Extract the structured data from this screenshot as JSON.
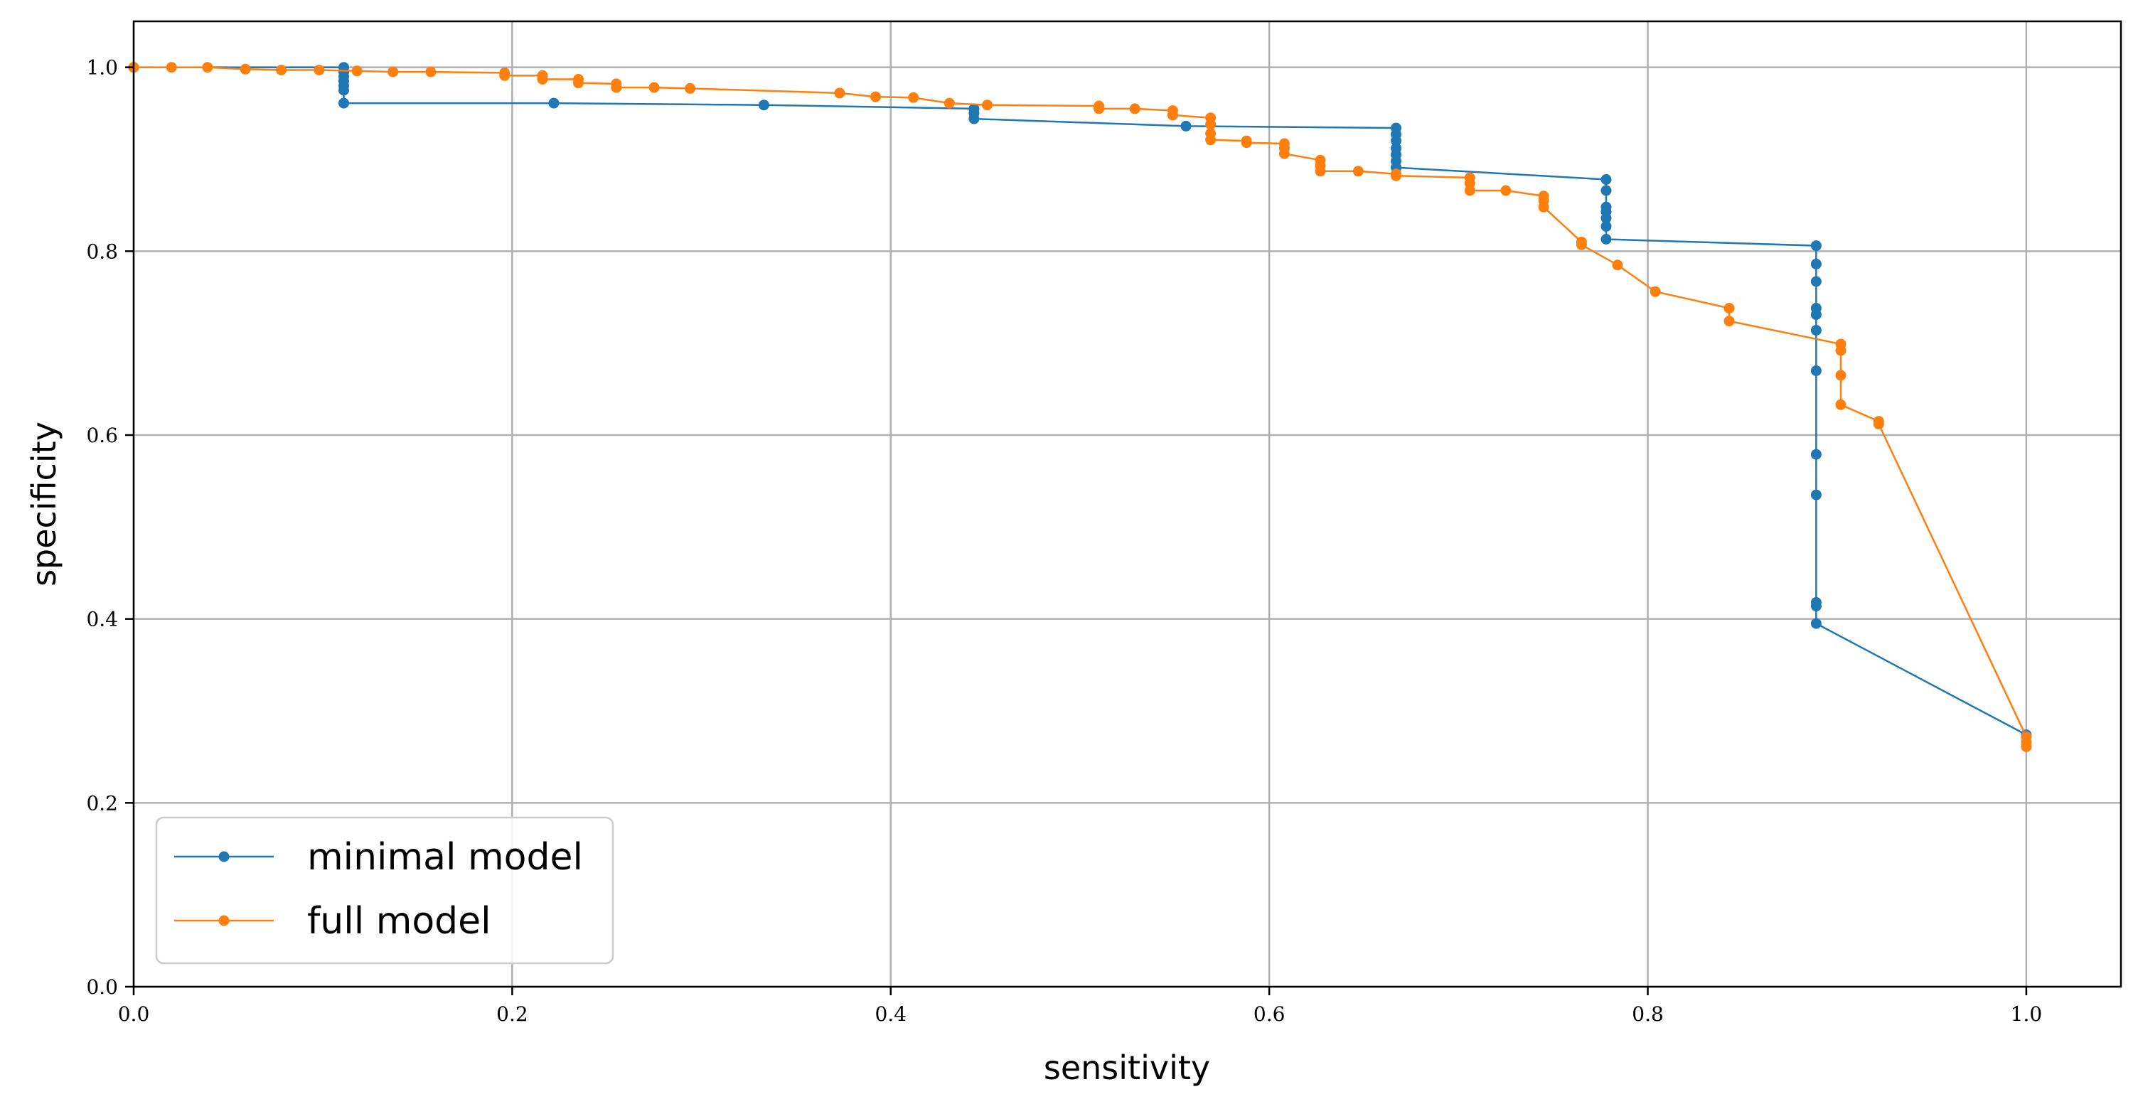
{
  "chart_data": {
    "type": "line",
    "title": "",
    "xlabel": "sensitivity",
    "ylabel": "specificity",
    "xlim": [
      0.0,
      1.05
    ],
    "ylim": [
      0.0,
      1.05
    ],
    "x_ticks": [
      0.0,
      0.2,
      0.4,
      0.6,
      0.8,
      1.0
    ],
    "y_ticks": [
      0.0,
      0.2,
      0.4,
      0.6,
      0.8,
      1.0
    ],
    "x_tick_labels": [
      "0.0",
      "0.2",
      "0.4",
      "0.6",
      "0.8",
      "1.0"
    ],
    "y_tick_labels": [
      "0.0",
      "0.2",
      "0.4",
      "0.6",
      "0.8",
      "1.0"
    ],
    "grid": true,
    "legend_position": "lower-left",
    "series": [
      {
        "name": "minimal model",
        "color": "#1f77b4",
        "points": [
          [
            0.0,
            1.0
          ],
          [
            0.111,
            1.0
          ],
          [
            0.111,
            0.995
          ],
          [
            0.111,
            0.99
          ],
          [
            0.111,
            0.985
          ],
          [
            0.111,
            0.98
          ],
          [
            0.111,
            0.975
          ],
          [
            0.111,
            0.961
          ],
          [
            0.222,
            0.961
          ],
          [
            0.333,
            0.959
          ],
          [
            0.444,
            0.955
          ],
          [
            0.444,
            0.95
          ],
          [
            0.444,
            0.944
          ],
          [
            0.556,
            0.936
          ],
          [
            0.667,
            0.934
          ],
          [
            0.667,
            0.927
          ],
          [
            0.667,
            0.92
          ],
          [
            0.667,
            0.912
          ],
          [
            0.667,
            0.905
          ],
          [
            0.667,
            0.898
          ],
          [
            0.667,
            0.891
          ],
          [
            0.778,
            0.878
          ],
          [
            0.778,
            0.866
          ],
          [
            0.778,
            0.848
          ],
          [
            0.778,
            0.843
          ],
          [
            0.778,
            0.836
          ],
          [
            0.778,
            0.827
          ],
          [
            0.778,
            0.813
          ],
          [
            0.889,
            0.806
          ],
          [
            0.889,
            0.786
          ],
          [
            0.889,
            0.767
          ],
          [
            0.889,
            0.738
          ],
          [
            0.889,
            0.731
          ],
          [
            0.889,
            0.714
          ],
          [
            0.889,
            0.67
          ],
          [
            0.889,
            0.579
          ],
          [
            0.889,
            0.535
          ],
          [
            0.889,
            0.418
          ],
          [
            0.889,
            0.414
          ],
          [
            0.889,
            0.395
          ],
          [
            1.0,
            0.274
          ]
        ]
      },
      {
        "name": "full model",
        "color": "#ff7f0e",
        "points": [
          [
            0.0,
            1.0
          ],
          [
            0.02,
            1.0
          ],
          [
            0.039,
            1.0
          ],
          [
            0.059,
            0.998
          ],
          [
            0.078,
            0.997
          ],
          [
            0.098,
            0.997
          ],
          [
            0.118,
            0.996
          ],
          [
            0.137,
            0.995
          ],
          [
            0.157,
            0.995
          ],
          [
            0.196,
            0.994
          ],
          [
            0.196,
            0.991
          ],
          [
            0.216,
            0.991
          ],
          [
            0.216,
            0.987
          ],
          [
            0.235,
            0.987
          ],
          [
            0.235,
            0.983
          ],
          [
            0.255,
            0.982
          ],
          [
            0.255,
            0.978
          ],
          [
            0.275,
            0.978
          ],
          [
            0.294,
            0.977
          ],
          [
            0.373,
            0.972
          ],
          [
            0.392,
            0.968
          ],
          [
            0.412,
            0.967
          ],
          [
            0.431,
            0.961
          ],
          [
            0.451,
            0.959
          ],
          [
            0.51,
            0.958
          ],
          [
            0.51,
            0.955
          ],
          [
            0.529,
            0.955
          ],
          [
            0.549,
            0.953
          ],
          [
            0.549,
            0.948
          ],
          [
            0.569,
            0.945
          ],
          [
            0.569,
            0.938
          ],
          [
            0.569,
            0.928
          ],
          [
            0.569,
            0.921
          ],
          [
            0.588,
            0.92
          ],
          [
            0.588,
            0.918
          ],
          [
            0.608,
            0.917
          ],
          [
            0.608,
            0.912
          ],
          [
            0.608,
            0.906
          ],
          [
            0.627,
            0.899
          ],
          [
            0.627,
            0.893
          ],
          [
            0.627,
            0.887
          ],
          [
            0.647,
            0.887
          ],
          [
            0.667,
            0.884
          ],
          [
            0.667,
            0.882
          ],
          [
            0.706,
            0.88
          ],
          [
            0.706,
            0.874
          ],
          [
            0.706,
            0.866
          ],
          [
            0.725,
            0.866
          ],
          [
            0.745,
            0.86
          ],
          [
            0.745,
            0.855
          ],
          [
            0.745,
            0.848
          ],
          [
            0.765,
            0.81
          ],
          [
            0.765,
            0.807
          ],
          [
            0.784,
            0.785
          ],
          [
            0.804,
            0.756
          ],
          [
            0.843,
            0.738
          ],
          [
            0.843,
            0.724
          ],
          [
            0.902,
            0.699
          ],
          [
            0.902,
            0.692
          ],
          [
            0.902,
            0.665
          ],
          [
            0.902,
            0.633
          ],
          [
            0.922,
            0.615
          ],
          [
            0.922,
            0.612
          ],
          [
            1.0,
            0.272
          ],
          [
            1.0,
            0.266
          ],
          [
            1.0,
            0.261
          ]
        ]
      }
    ]
  }
}
